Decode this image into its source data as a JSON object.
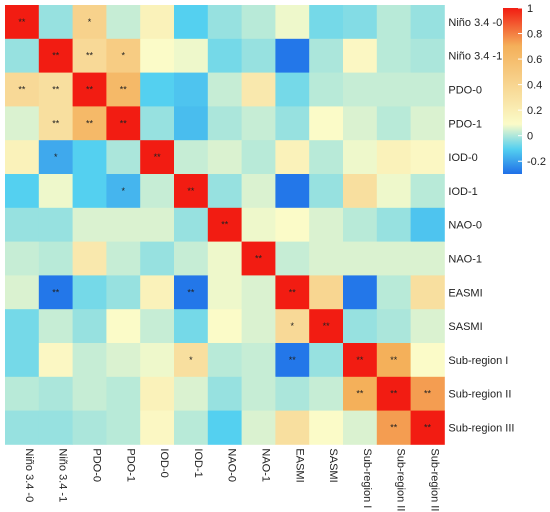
{
  "chart_data": {
    "type": "heatmap",
    "title": "",
    "xlabel": "",
    "ylabel": "",
    "variables": [
      "Niño 3.4 -0",
      "Niño 3.4 -1",
      "PDO-0",
      "PDO-1",
      "IOD-0",
      "IOD-1",
      "NAO-0",
      "NAO-1",
      "EASMI",
      "SASMI",
      "Sub-region I",
      "Sub-region II",
      "Sub-region III"
    ],
    "matrix": [
      [
        1,
        0.05,
        0.42,
        0.12,
        0.25,
        -0.05,
        0.05,
        0.1,
        0.18,
        0,
        0.02,
        0.1,
        0.05
      ],
      [
        0.05,
        1,
        0.38,
        0.45,
        0.2,
        0.18,
        0,
        0.05,
        -0.28,
        0.08,
        0.22,
        0.1,
        0.08
      ],
      [
        0.38,
        0.35,
        1,
        0.55,
        -0.05,
        -0.08,
        0.12,
        0.3,
        0,
        0.1,
        0.12,
        0.12,
        0.12
      ],
      [
        0.15,
        0.35,
        0.55,
        1,
        0.05,
        -0.1,
        0.08,
        0.12,
        0.05,
        0.2,
        0.15,
        0.1,
        0.15
      ],
      [
        0.25,
        -0.15,
        -0.05,
        0.08,
        1,
        0.12,
        0.15,
        0.1,
        0.25,
        0.1,
        0.18,
        0.25,
        0.22
      ],
      [
        -0.05,
        0.18,
        -0.05,
        -0.12,
        0.12,
        1,
        0.05,
        0.15,
        -0.28,
        0.05,
        0.35,
        0.18,
        0.1
      ],
      [
        0.05,
        0.05,
        0.15,
        0.15,
        0.15,
        0.05,
        1,
        0.18,
        0.2,
        0.15,
        0.1,
        0.05,
        -0.08
      ],
      [
        0.12,
        0.1,
        0.3,
        0.12,
        0.05,
        0.12,
        0.18,
        1,
        0.12,
        0.15,
        0.15,
        0.15,
        0.15
      ],
      [
        0.15,
        -0.28,
        0,
        0.05,
        0.25,
        -0.28,
        0.18,
        0.15,
        1,
        0.4,
        -0.28,
        0.1,
        0.35
      ],
      [
        0,
        0.12,
        0.05,
        0.2,
        0.12,
        0,
        0.2,
        0.15,
        0.38,
        1,
        0.05,
        0.08,
        0.15
      ],
      [
        0,
        0.22,
        0.12,
        0.15,
        0.18,
        0.35,
        0.1,
        0.12,
        -0.28,
        0.05,
        1,
        0.6,
        0.2
      ],
      [
        0.1,
        0.08,
        0.12,
        0.1,
        0.25,
        0.15,
        0.05,
        0.12,
        0.08,
        0.12,
        0.6,
        1,
        0.65
      ],
      [
        0.05,
        0.05,
        0.08,
        0.1,
        0.22,
        0.1,
        -0.05,
        0.15,
        0.35,
        0.2,
        0.15,
        0.65,
        1
      ]
    ],
    "significance": [
      [
        "**",
        "",
        "*",
        "",
        "",
        "",
        "",
        "",
        "",
        "",
        "",
        "",
        ""
      ],
      [
        "",
        "**",
        "**",
        "*",
        "",
        "",
        "",
        "",
        "",
        "",
        "",
        "",
        ""
      ],
      [
        "**",
        "**",
        "**",
        "**",
        "",
        "",
        "",
        "",
        "",
        "",
        "",
        "",
        ""
      ],
      [
        "",
        "**",
        "**",
        "**",
        "",
        "",
        "",
        "",
        "",
        "",
        "",
        "",
        ""
      ],
      [
        "",
        "*",
        "",
        "",
        "**",
        "",
        "",
        "",
        "",
        "",
        "",
        "",
        ""
      ],
      [
        "",
        "",
        "",
        "*",
        "",
        "**",
        "",
        "",
        "",
        "",
        "",
        "",
        ""
      ],
      [
        "",
        "",
        "",
        "",
        "",
        "",
        "**",
        "",
        "",
        "",
        "",
        "",
        ""
      ],
      [
        "",
        "",
        "",
        "",
        "",
        "",
        "",
        "**",
        "",
        "",
        "",
        "",
        ""
      ],
      [
        "",
        "**",
        "",
        "",
        "",
        "**",
        "",
        "",
        "**",
        "",
        "",
        "",
        ""
      ],
      [
        "",
        "",
        "",
        "",
        "",
        "",
        "",
        "",
        "*",
        "**",
        "",
        "",
        ""
      ],
      [
        "",
        "",
        "",
        "",
        "",
        "*",
        "",
        "",
        "**",
        "",
        "**",
        "**",
        ""
      ],
      [
        "",
        "",
        "",
        "",
        "",
        "",
        "",
        "",
        "",
        "",
        "**",
        "**",
        "**"
      ],
      [
        "",
        "",
        "",
        "",
        "",
        "",
        "",
        "",
        "",
        "",
        "",
        "**",
        "**"
      ]
    ],
    "colorbar": {
      "ticks": [
        1,
        0.8,
        0.6,
        0.4,
        0.2,
        0,
        -0.2
      ],
      "range": [
        -0.3,
        1
      ],
      "colors": {
        "low": "#1f6fe8",
        "mid_low": "#54d0f0",
        "mid": "#fbfbc8",
        "mid_high": "#f4b05a",
        "high": "#f21c12"
      }
    },
    "legend_position": "right"
  }
}
